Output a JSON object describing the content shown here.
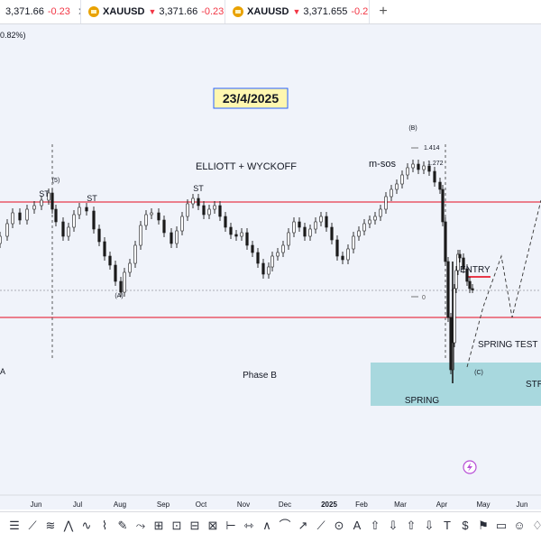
{
  "tabs": [
    {
      "symbol": "",
      "price": "3,371.66",
      "change": "-0.23"
    },
    {
      "symbol": "XAUUSD",
      "price": "3,371.66",
      "change": "-0.23"
    },
    {
      "symbol": "XAUUSD",
      "price": "3,371.655",
      "change": "-0.2"
    }
  ],
  "chart": {
    "header_fragment": "0.82%)",
    "date_box": "23/4/2025",
    "title": "ELLIOTT + WYCKOFF",
    "labels": {
      "msos": "m-sos",
      "b_wave": "(B)",
      "a_wave": "(A)",
      "c_wave": "(C)",
      "five_wave": "(5)",
      "st1": "ST",
      "st2": "ST",
      "st3": "ST",
      "fib_1414": "1.414",
      "fib_1272": "1.272",
      "fib_0": "0",
      "entry": "ENTRY",
      "spring_test": "SPRING TEST",
      "spring": "SPRING",
      "str": "STR",
      "phase_b": "Phase B",
      "left_a": "A"
    },
    "x_axis": [
      "Jun",
      "Jul",
      "Aug",
      "Sep",
      "Oct",
      "Nov",
      "Dec",
      "2025",
      "Feb",
      "Mar",
      "Apr",
      "May",
      "Jun"
    ],
    "colors": {
      "resistance_line": "#e8394a",
      "spring_zone": "#a8d8de",
      "date_box_bg": "#fff7b0",
      "date_box_border": "#2962ff",
      "candle": "#1a1a1a"
    }
  },
  "toolbar": {
    "tools": [
      "menu-icon",
      "trend-line-icon",
      "fib-icon",
      "pattern-icon",
      "wave-icon",
      "projection-icon",
      "brush-icon",
      "path-icon",
      "ruler-icon",
      "long-position-icon",
      "short-position-icon",
      "date-range-icon",
      "anchored-vwap-icon",
      "price-range-icon",
      "bars-pattern-icon",
      "ghost-feed-icon",
      "curve-icon",
      "arrow-icon",
      "line-tool-icon",
      "head-shoulders-icon",
      "elliott-icon",
      "triangle-icon",
      "arrow-up-icon",
      "arrow-down-icon",
      "text-icon",
      "price-label-icon",
      "flag-icon",
      "callout-icon",
      "emoji-icon",
      "paint-icon"
    ]
  }
}
